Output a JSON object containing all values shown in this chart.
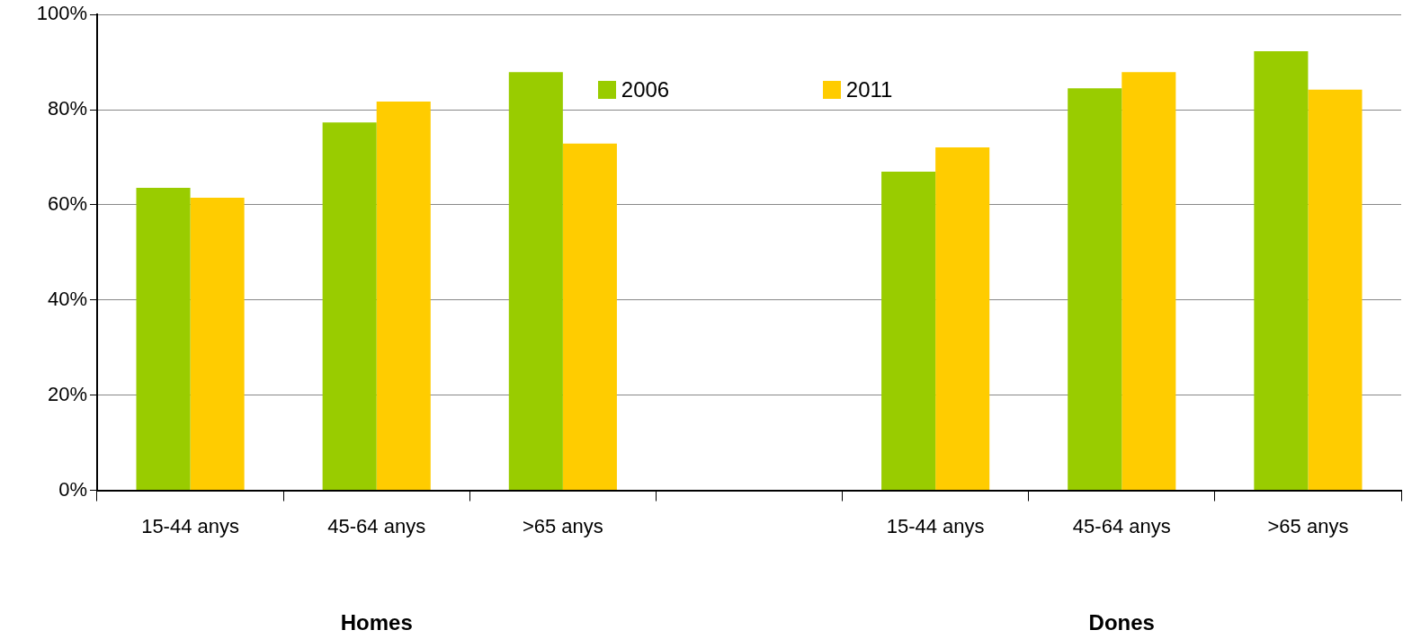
{
  "chart_data": {
    "type": "bar",
    "categories": [
      "15-44 anys",
      "45-64 anys",
      ">65 anys",
      null,
      "15-44 anys",
      "45-64 anys",
      ">65 anys"
    ],
    "series": [
      {
        "name": "2006",
        "color": "#99cc00",
        "values": [
          63.6,
          77.3,
          87.9,
          null,
          67.0,
          84.5,
          92.3
        ]
      },
      {
        "name": "2011",
        "color": "#ffcc00",
        "values": [
          61.5,
          81.7,
          72.9,
          null,
          72.1,
          87.9,
          84.2
        ]
      }
    ],
    "ylim": [
      0,
      100
    ],
    "yticks": [
      {
        "value": 0,
        "label": "0%"
      },
      {
        "value": 20,
        "label": "20%"
      },
      {
        "value": 40,
        "label": "40%"
      },
      {
        "value": 60,
        "label": "60%"
      },
      {
        "value": 80,
        "label": "80%"
      },
      {
        "value": 100,
        "label": "100%"
      }
    ],
    "grid": "y",
    "legend": "top",
    "annotations": [
      "Homes",
      "Dones"
    ]
  }
}
